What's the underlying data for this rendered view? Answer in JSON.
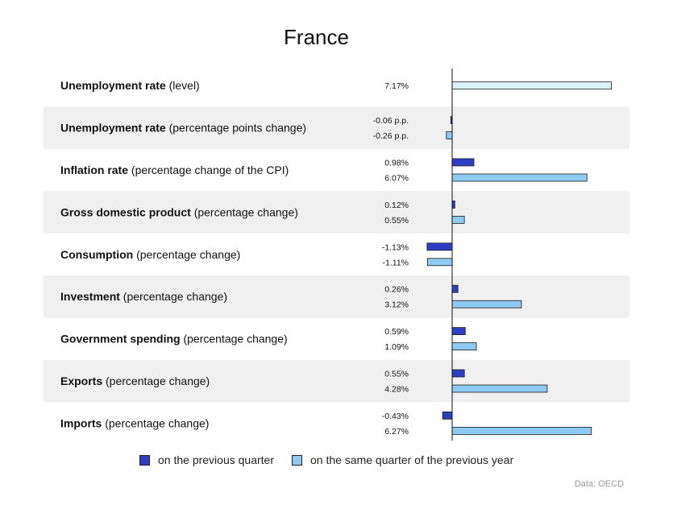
{
  "chart_data": {
    "type": "bar",
    "orientation": "horizontal",
    "title": "France",
    "rows": [
      {
        "bold": "Unemployment rate",
        "rest": " (level)",
        "values": [
          7.17
        ],
        "labels": [
          "7.17%"
        ]
      },
      {
        "bold": "Unemployment rate",
        "rest": " (percentage points change)",
        "values": [
          -0.06,
          -0.26
        ],
        "labels": [
          "-0.06 p.p.",
          "-0.26 p.p."
        ]
      },
      {
        "bold": "Inflation rate",
        "rest": " (percentage change of the CPI)",
        "values": [
          0.98,
          6.07
        ],
        "labels": [
          "0.98%",
          "6.07%"
        ]
      },
      {
        "bold": "Gross domestic product",
        "rest": " (percentage change)",
        "values": [
          0.12,
          0.55
        ],
        "labels": [
          "0.12%",
          "0.55%"
        ]
      },
      {
        "bold": "Consumption",
        "rest": " (percentage change)",
        "values": [
          -1.13,
          -1.11
        ],
        "labels": [
          "-1.13%",
          "-1.11%"
        ]
      },
      {
        "bold": "Investment",
        "rest": " (percentage change)",
        "values": [
          0.26,
          3.12
        ],
        "labels": [
          "0.26%",
          "3.12%"
        ]
      },
      {
        "bold": "Government spending",
        "rest": " (percentage change)",
        "values": [
          0.59,
          1.09
        ],
        "labels": [
          "0.59%",
          "1.09%"
        ]
      },
      {
        "bold": "Exports",
        "rest": " (percentage change)",
        "values": [
          0.55,
          4.28
        ],
        "labels": [
          "0.55%",
          "4.28%"
        ]
      },
      {
        "bold": "Imports",
        "rest": " (percentage change)",
        "values": [
          -0.43,
          6.27
        ],
        "labels": [
          "-0.43%",
          "6.27%"
        ]
      }
    ],
    "series": [
      {
        "name": "on the previous quarter",
        "color": "#2d3fc5"
      },
      {
        "name": "on the same quarter of the previous year",
        "color": "#8ecbf3"
      }
    ],
    "level_series_color": "#dcf3fb",
    "row_band_color": "#f0f0f0",
    "source": "Data: OECD"
  }
}
